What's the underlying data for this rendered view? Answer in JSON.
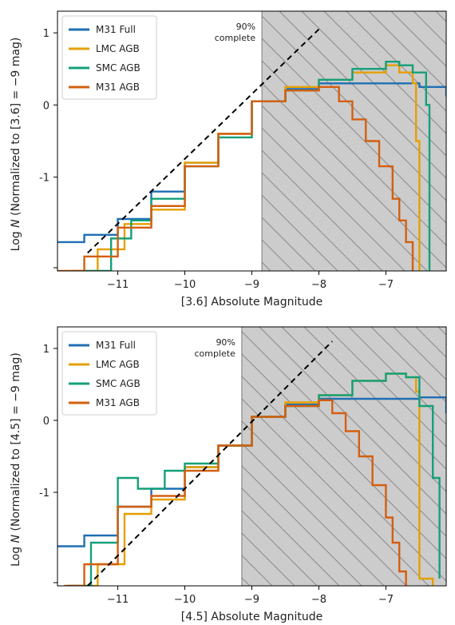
{
  "colors": {
    "m31_full": "#1f6fb4",
    "lmc_agb": "#e69f00",
    "smc_agb": "#14a07a",
    "m31_agb": "#d45f10",
    "shade": "#cccccc",
    "hatch": "#8a8a8a",
    "fit": "#000000"
  },
  "chart_data": [
    {
      "type": "step-histogram",
      "xlabel": "[3.6] Absolute Magnitude",
      "ylabel": "Log N (Normalized to [3.6] = −9 mag)",
      "ylabel_prefix": "Log ",
      "ylabel_var": "N",
      "ylabel_suffix": " (Normalized to [3.6] = −9 mag)",
      "xlim": [
        -11.9,
        -6.1
      ],
      "ylim": [
        -2.3,
        1.3
      ],
      "xticks": [
        -11,
        -10,
        -9,
        -8,
        -7
      ],
      "xtick_labels": [
        "−11",
        "−10",
        "−9",
        "−8",
        "−7"
      ],
      "yticks": [
        1,
        0,
        -1
      ],
      "ytick_labels": [
        "1",
        "0",
        "-1"
      ],
      "completeness": {
        "mag": -8.85,
        "label_line1": "90%",
        "label_line2": "complete"
      },
      "fit_line": {
        "x": [
          -11.45,
          -8.0
        ],
        "y": [
          -2.05,
          1.05
        ]
      },
      "legend": {
        "placement": "upper-left",
        "entries": [
          "M31 Full",
          "LMC AGB",
          "SMC AGB",
          "M31 AGB"
        ]
      },
      "series": [
        {
          "name": "M31 Full",
          "x": [
            -11.9,
            -11.5,
            -11.0,
            -10.5,
            -10.0,
            -9.5,
            -9.0,
            -8.5,
            -8.0,
            -7.5,
            -7.0,
            -6.5,
            -6.1
          ],
          "y": [
            -1.9,
            -1.8,
            -1.58,
            -1.2,
            -0.8,
            -0.4,
            0.05,
            0.22,
            0.3,
            0.3,
            0.3,
            0.25,
            0.12
          ]
        },
        {
          "name": "LMC AGB",
          "x": [
            -11.7,
            -11.3,
            -10.9,
            -10.5,
            -10.0,
            -9.5,
            -9.0,
            -8.5,
            -8.0,
            -7.5,
            -7.0,
            -6.8,
            -6.6,
            -6.55,
            -6.5
          ],
          "y": [
            -2.3,
            -2.0,
            -1.65,
            -1.45,
            -0.8,
            -0.4,
            0.05,
            0.25,
            0.35,
            0.45,
            0.55,
            0.45,
            0.3,
            -0.5,
            -2.3
          ]
        },
        {
          "name": "SMC AGB",
          "x": [
            -11.5,
            -11.1,
            -10.8,
            -10.5,
            -10.0,
            -9.5,
            -9.0,
            -8.5,
            -8.0,
            -7.5,
            -7.0,
            -6.8,
            -6.6,
            -6.4,
            -6.35
          ],
          "y": [
            -2.3,
            -1.85,
            -1.6,
            -1.3,
            -0.85,
            -0.45,
            0.05,
            0.2,
            0.35,
            0.5,
            0.6,
            0.55,
            0.45,
            0.0,
            -2.3
          ]
        },
        {
          "name": "M31 AGB",
          "x": [
            -11.9,
            -11.5,
            -11.0,
            -10.5,
            -10.0,
            -9.5,
            -9.0,
            -8.5,
            -8.0,
            -7.7,
            -7.5,
            -7.3,
            -7.1,
            -6.9,
            -6.8,
            -6.7,
            -6.6
          ],
          "y": [
            -2.3,
            -2.1,
            -1.7,
            -1.4,
            -0.85,
            -0.4,
            0.05,
            0.2,
            0.25,
            0.05,
            -0.2,
            -0.5,
            -0.85,
            -1.3,
            -1.6,
            -1.9,
            -2.3
          ]
        }
      ]
    },
    {
      "type": "step-histogram",
      "xlabel": "[4.5] Absolute Magnitude",
      "ylabel": "Log N (Normalized to [4.5] = −9 mag)",
      "ylabel_prefix": "Log ",
      "ylabel_var": "N",
      "ylabel_suffix": " (Normalized to [4.5] = −9 mag)",
      "xlim": [
        -11.9,
        -6.1
      ],
      "ylim": [
        -2.3,
        1.3
      ],
      "xticks": [
        -11,
        -10,
        -9,
        -8,
        -7
      ],
      "xtick_labels": [
        "−11",
        "−10",
        "−9",
        "−8",
        "−7"
      ],
      "yticks": [
        1,
        0,
        -1
      ],
      "ytick_labels": [
        "1",
        "0",
        "-1"
      ],
      "completeness": {
        "mag": -9.15,
        "label_line1": "90%",
        "label_line2": "complete"
      },
      "fit_line": {
        "x": [
          -11.45,
          -7.8
        ],
        "y": [
          -2.3,
          1.1
        ]
      },
      "legend": {
        "placement": "upper-left",
        "entries": [
          "M31 Full",
          "LMC AGB",
          "SMC AGB",
          "M31 AGB"
        ]
      },
      "series": [
        {
          "name": "M31 Full",
          "x": [
            -11.9,
            -11.5,
            -11.0,
            -10.5,
            -10.0,
            -9.5,
            -9.0,
            -8.5,
            -8.0,
            -7.5,
            -7.0,
            -6.5,
            -6.1
          ],
          "y": [
            -1.75,
            -1.6,
            -1.2,
            -0.95,
            -0.65,
            -0.35,
            0.05,
            0.22,
            0.3,
            0.3,
            0.3,
            0.32,
            0.1
          ]
        },
        {
          "name": "LMC AGB",
          "x": [
            -11.7,
            -11.3,
            -10.9,
            -10.5,
            -10.0,
            -9.5,
            -9.0,
            -8.5,
            -8.0,
            -7.5,
            -7.0,
            -6.7,
            -6.55,
            -6.5,
            -6.3
          ],
          "y": [
            -2.3,
            -2.0,
            -1.3,
            -1.1,
            -0.65,
            -0.35,
            0.05,
            0.25,
            0.35,
            0.55,
            0.65,
            0.6,
            0.4,
            -2.2,
            -2.3
          ]
        },
        {
          "name": "SMC AGB",
          "x": [
            -11.75,
            -11.4,
            -11.0,
            -10.7,
            -10.3,
            -10.0,
            -9.5,
            -9.0,
            -8.5,
            -8.0,
            -7.5,
            -7.0,
            -6.7,
            -6.5,
            -6.3,
            -6.2
          ],
          "y": [
            -2.3,
            -1.7,
            -0.8,
            -0.95,
            -0.7,
            -0.6,
            -0.35,
            0.05,
            0.2,
            0.35,
            0.55,
            0.65,
            0.6,
            0.2,
            -0.8,
            -2.2
          ]
        },
        {
          "name": "M31 AGB",
          "x": [
            -11.8,
            -11.5,
            -11.0,
            -10.5,
            -10.0,
            -9.5,
            -9.0,
            -8.5,
            -8.0,
            -7.8,
            -7.6,
            -7.4,
            -7.2,
            -7.0,
            -6.9,
            -6.8,
            -6.7
          ],
          "y": [
            -2.3,
            -2.0,
            -1.2,
            -1.05,
            -0.7,
            -0.35,
            0.05,
            0.2,
            0.28,
            0.1,
            -0.15,
            -0.5,
            -0.9,
            -1.35,
            -1.7,
            -2.1,
            -2.3
          ]
        }
      ]
    }
  ]
}
